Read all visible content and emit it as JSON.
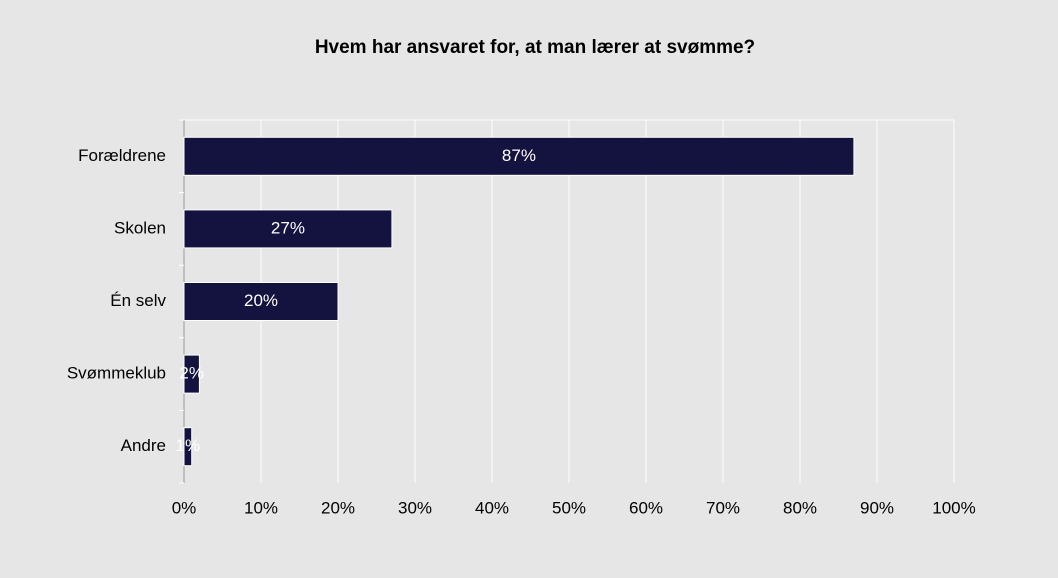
{
  "chart_data": {
    "type": "bar",
    "orientation": "horizontal",
    "title": "Hvem har ansvaret for, at man lærer at svømme?",
    "categories": [
      "Forældrene",
      "Skolen",
      "Én selv",
      "Svømmeklub",
      "Andre"
    ],
    "values": [
      87,
      27,
      20,
      2,
      1
    ],
    "value_labels": [
      "87%",
      "27%",
      "20%",
      "2%",
      "1%"
    ],
    "color": "#14123f",
    "xlim": [
      0,
      100
    ],
    "xticks": [
      {
        "value": 0,
        "label": "0%"
      },
      {
        "value": 10,
        "label": "10%"
      },
      {
        "value": 20,
        "label": "20%"
      },
      {
        "value": 30,
        "label": "30%"
      },
      {
        "value": 40,
        "label": "40%"
      },
      {
        "value": 50,
        "label": "50%"
      },
      {
        "value": 60,
        "label": "60%"
      },
      {
        "value": 70,
        "label": "70%"
      },
      {
        "value": 80,
        "label": "80%"
      },
      {
        "value": 90,
        "label": "90%"
      },
      {
        "value": 100,
        "label": "100%"
      }
    ],
    "grid": true
  }
}
